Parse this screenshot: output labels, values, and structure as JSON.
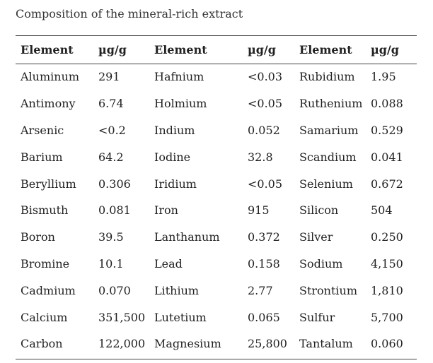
{
  "caption": "Composition of the mineral-rich extract",
  "headers": [
    "Element",
    "µg/g",
    "Element",
    "µg/g",
    "Element",
    "µg/g"
  ],
  "rows": [
    [
      "Aluminum",
      "291",
      "Hafnium",
      "<0.03",
      "Rubidium",
      "1.95"
    ],
    [
      "Antimony",
      "6.74",
      "Holmium",
      "<0.05",
      "Ruthenium",
      "0.088"
    ],
    [
      "Arsenic",
      "<0.2",
      "Indium",
      "0.052",
      "Samarium",
      "0.529"
    ],
    [
      "Barium",
      "64.2",
      "Iodine",
      "32.8",
      "Scandium",
      "0.041"
    ],
    [
      "Beryllium",
      "0.306",
      "Iridium",
      "<0.05",
      "Selenium",
      "0.672"
    ],
    [
      "Bismuth",
      "0.081",
      "Iron",
      "915",
      "Silicon",
      "504"
    ],
    [
      "Boron",
      "39.5",
      "Lanthanum",
      "0.372",
      "Silver",
      "0.250"
    ],
    [
      "Bromine",
      "10.1",
      "Lead",
      "0.158",
      "Sodium",
      "4,150"
    ],
    [
      "Cadmium",
      "0.070",
      "Lithium",
      "2.77",
      "Strontium",
      "1,810"
    ],
    [
      "Calcium",
      "351,500",
      "Lutetium",
      "0.065",
      "Sulfur",
      "5,700"
    ],
    [
      "Carbon",
      "122,000",
      "Magnesium",
      "25,800",
      "Tantalum",
      "0.060"
    ]
  ]
}
